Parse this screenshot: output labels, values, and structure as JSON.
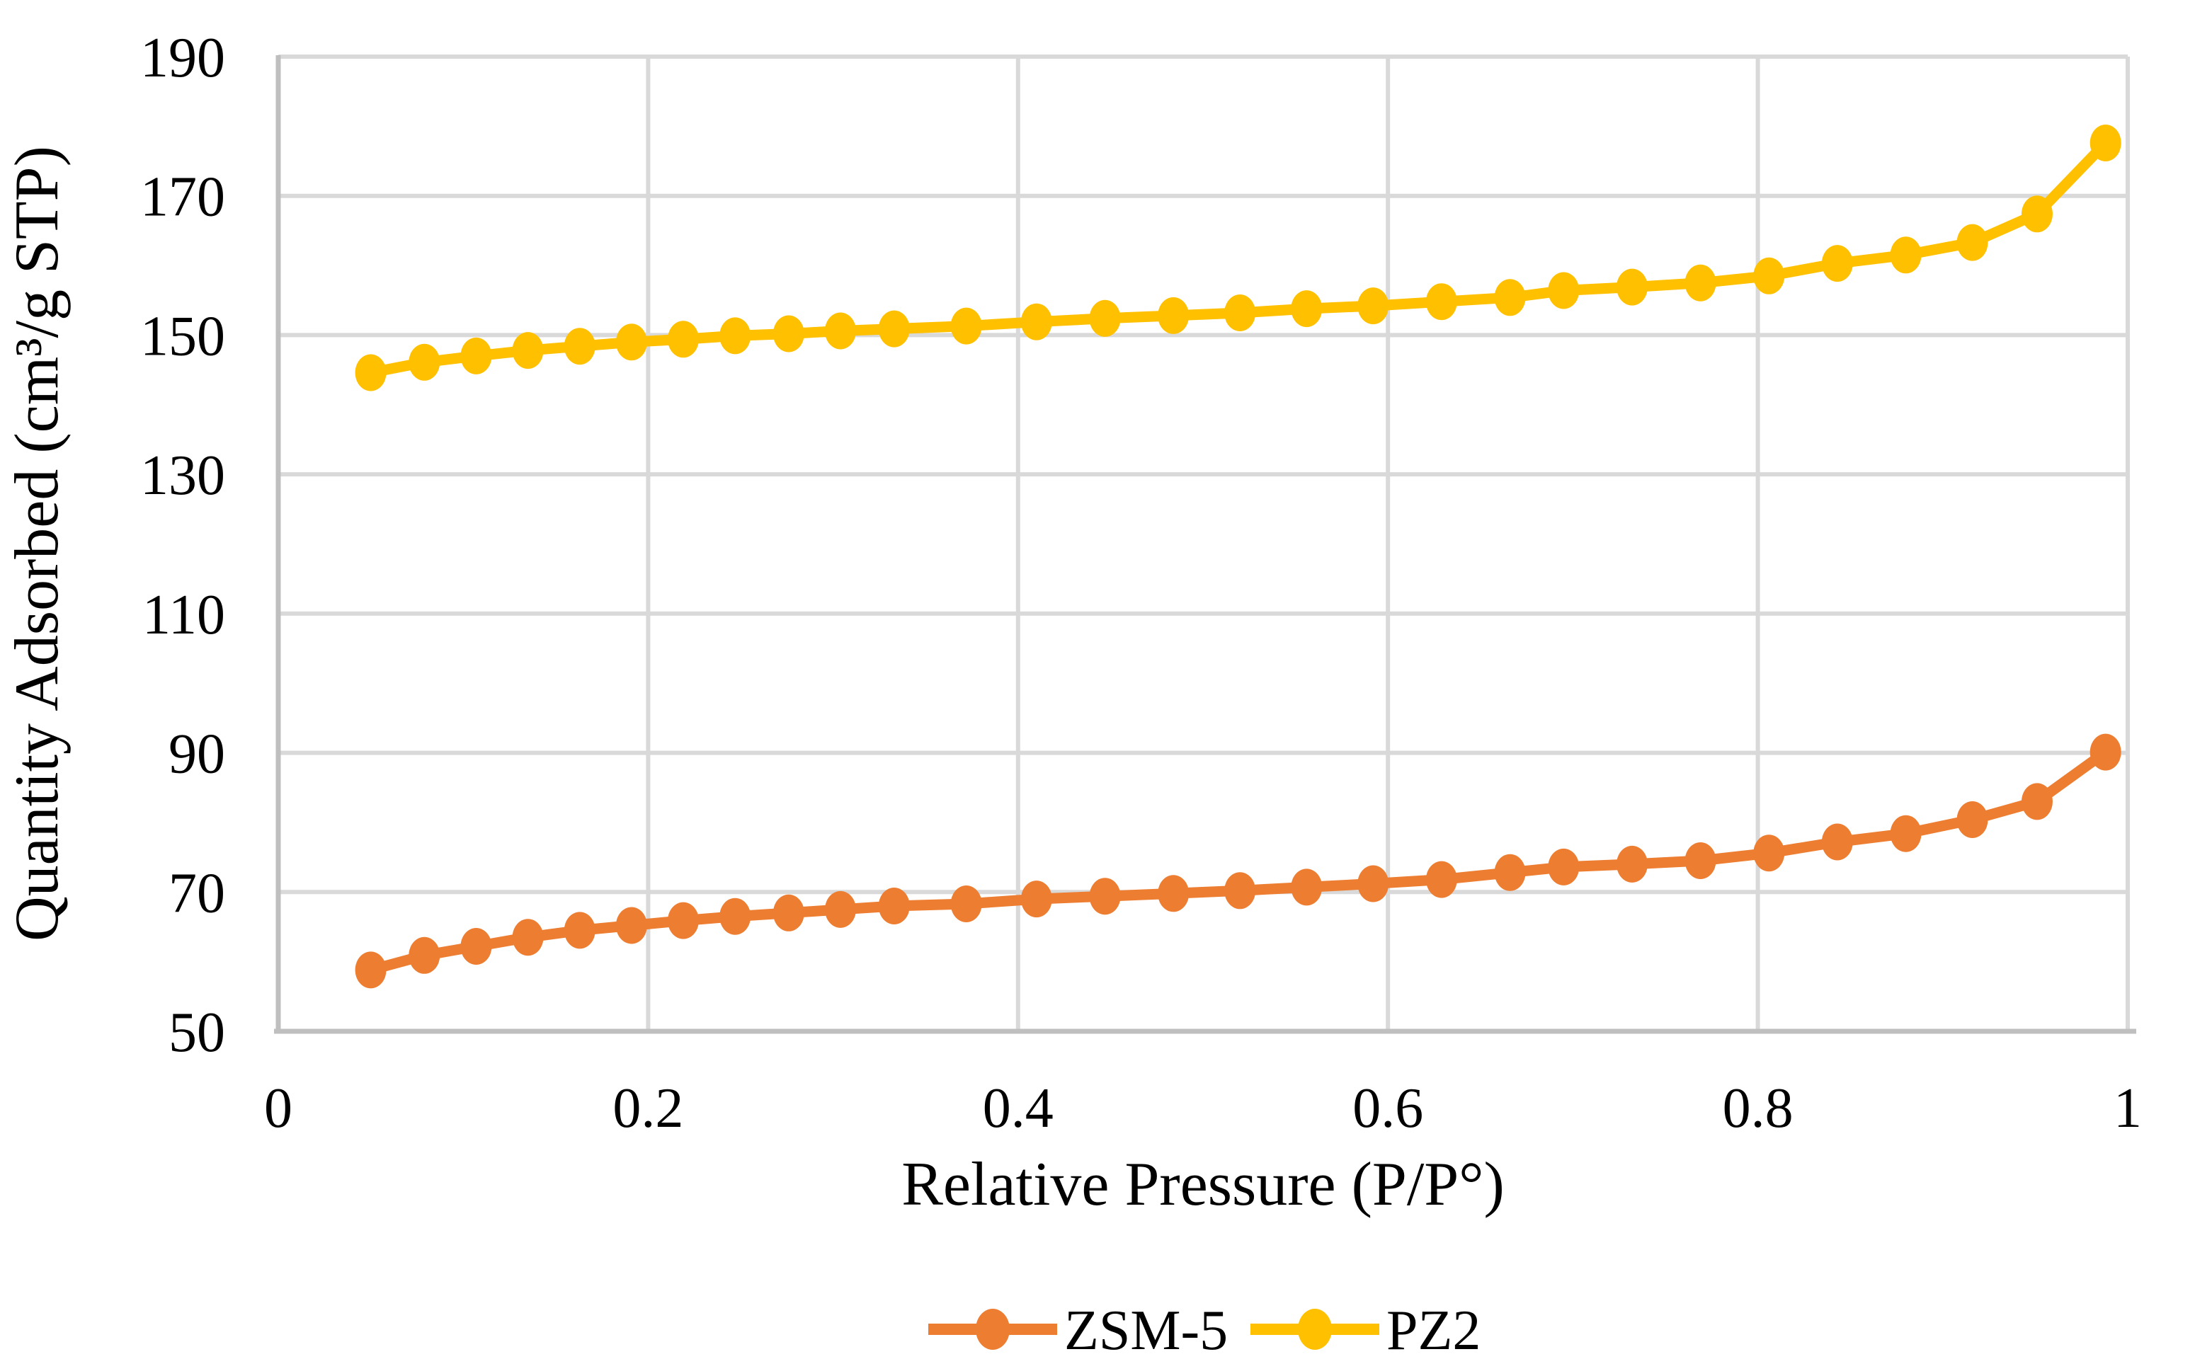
{
  "chart_data": {
    "type": "line",
    "title": "",
    "xlabel": "Relative Pressure (P/P°)",
    "ylabel": "Quantity Adsorbed (cm³/g STP)",
    "xlim": [
      0,
      1
    ],
    "ylim": [
      50,
      190
    ],
    "grid": true,
    "legend_position": "bottom",
    "x_ticks": [
      0,
      0.2,
      0.4,
      0.6,
      0.8,
      1
    ],
    "x_tick_labels": [
      "0",
      "0.2",
      "0.4",
      "0.6",
      "0.8",
      "1"
    ],
    "y_ticks": [
      50,
      70,
      90,
      110,
      130,
      150,
      170,
      190
    ],
    "y_tick_labels": [
      "50",
      "70",
      "90",
      "110",
      "130",
      "150",
      "170",
      "190"
    ],
    "x": [
      0.05,
      0.079,
      0.107,
      0.135,
      0.163,
      0.191,
      0.219,
      0.247,
      0.276,
      0.304,
      0.333,
      0.372,
      0.41,
      0.447,
      0.484,
      0.52,
      0.556,
      0.592,
      0.629,
      0.666,
      0.695,
      0.732,
      0.769,
      0.806,
      0.843,
      0.88,
      0.916,
      0.951,
      0.988
    ],
    "series": [
      {
        "name": "ZSM-5",
        "color": "#ED7D31",
        "values": [
          58.8,
          60.9,
          62.2,
          63.5,
          64.5,
          65.2,
          65.9,
          66.5,
          67.0,
          67.5,
          68.0,
          68.3,
          69.0,
          69.4,
          69.8,
          70.2,
          70.7,
          71.2,
          71.8,
          72.8,
          73.6,
          74.0,
          74.5,
          75.6,
          77.2,
          78.4,
          80.4,
          83.0,
          90.1
        ]
      },
      {
        "name": "PZ2",
        "color": "#FFC000",
        "values": [
          144.6,
          146.1,
          147.0,
          147.8,
          148.4,
          149.0,
          149.4,
          149.9,
          150.2,
          150.6,
          150.9,
          151.3,
          151.9,
          152.4,
          152.8,
          153.2,
          153.8,
          154.2,
          154.8,
          155.4,
          156.4,
          156.9,
          157.5,
          158.5,
          160.3,
          161.5,
          163.3,
          167.4,
          177.6
        ]
      }
    ]
  },
  "colors": {
    "background": "#FFFFFF",
    "gridline": "#D9D9D9",
    "axis_line": "#BFBFBF",
    "text": "#000000"
  }
}
